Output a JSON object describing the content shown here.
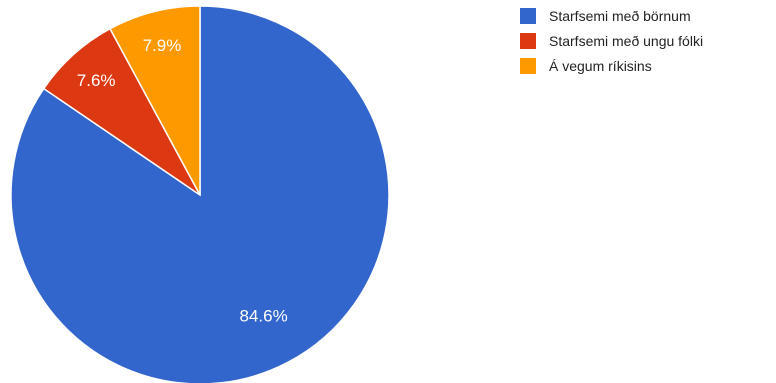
{
  "chart_data": {
    "type": "pie",
    "title": "",
    "slices": [
      {
        "label": "Starfsemi með börnum",
        "value": 84.6,
        "display": "84.6%",
        "color": "#3366cc"
      },
      {
        "label": "Starfsemi með ungu fólki",
        "value": 7.6,
        "display": "7.6%",
        "color": "#dc3912"
      },
      {
        "label": "Á vegum ríkisins",
        "value": 7.9,
        "display": "7.9%",
        "color": "#ff9900"
      }
    ],
    "legend_position": "right",
    "start_angle": "12 o'clock",
    "direction": "clockwise"
  }
}
